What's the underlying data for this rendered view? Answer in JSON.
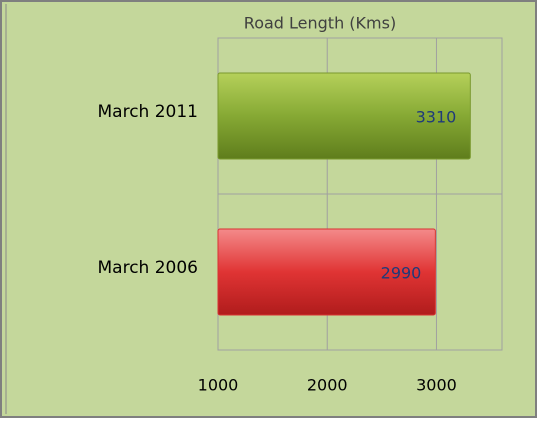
{
  "chart_data": {
    "type": "hbar",
    "title": "Road Length (Kms)",
    "categories": [
      "March 2011",
      "March 2006"
    ],
    "values": [
      3310,
      2990
    ],
    "colors": [
      "#7a9a2e",
      "#d93232"
    ],
    "xlim": [
      1000,
      3600
    ],
    "xticks": [
      1000,
      2000,
      3000
    ],
    "grid": true
  }
}
